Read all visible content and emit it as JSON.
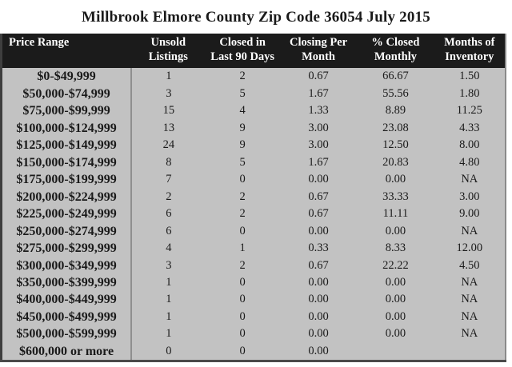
{
  "table": {
    "column_labels": [
      "Price Range",
      "Unsold\nListings",
      "Closed in\nLast 90 Days",
      "Closing Per\nMonth",
      "% Closed\nMonthly",
      "Months of\nInventory"
    ]
  },
  "colors": {
    "header_bg": "#1b1b1b",
    "header_text": "#ffffff",
    "body_bg": "#c2c2c2",
    "text": "#1a1a1a",
    "divider": "#8f8f8f",
    "outer_border": "#3e3e3e",
    "page_bg": "#ffffff"
  },
  "chart_data": {
    "type": "table",
    "title": "Millbrook Elmore County Zip Code 36054 July 2015",
    "columns": [
      "Price Range",
      "Unsold Listings",
      "Closed in Last 90 Days",
      "Closing Per Month",
      "% Closed Monthly",
      "Months of Inventory"
    ],
    "rows": [
      [
        "$0-$49,999",
        "1",
        "2",
        "0.67",
        "66.67",
        "1.50"
      ],
      [
        "$50,000-$74,999",
        "3",
        "5",
        "1.67",
        "55.56",
        "1.80"
      ],
      [
        "$75,000-$99,999",
        "15",
        "4",
        "1.33",
        "8.89",
        "11.25"
      ],
      [
        "$100,000-$124,999",
        "13",
        "9",
        "3.00",
        "23.08",
        "4.33"
      ],
      [
        "$125,000-$149,999",
        "24",
        "9",
        "3.00",
        "12.50",
        "8.00"
      ],
      [
        "$150,000-$174,999",
        "8",
        "5",
        "1.67",
        "20.83",
        "4.80"
      ],
      [
        "$175,000-$199,999",
        "7",
        "0",
        "0.00",
        "0.00",
        "NA"
      ],
      [
        "$200,000-$224,999",
        "2",
        "2",
        "0.67",
        "33.33",
        "3.00"
      ],
      [
        "$225,000-$249,999",
        "6",
        "2",
        "0.67",
        "11.11",
        "9.00"
      ],
      [
        "$250,000-$274,999",
        "6",
        "0",
        "0.00",
        "0.00",
        "NA"
      ],
      [
        "$275,000-$299,999",
        "4",
        "1",
        "0.33",
        "8.33",
        "12.00"
      ],
      [
        "$300,000-$349,999",
        "3",
        "2",
        "0.67",
        "22.22",
        "4.50"
      ],
      [
        "$350,000-$399,999",
        "1",
        "0",
        "0.00",
        "0.00",
        "NA"
      ],
      [
        "$400,000-$449,999",
        "1",
        "0",
        "0.00",
        "0.00",
        "NA"
      ],
      [
        "$450,000-$499,999",
        "1",
        "0",
        "0.00",
        "0.00",
        "NA"
      ],
      [
        "$500,000-$599,999",
        "1",
        "0",
        "0.00",
        "0.00",
        "NA"
      ],
      [
        "$600,000 or more",
        "0",
        "0",
        "0.00",
        "",
        ""
      ]
    ]
  }
}
